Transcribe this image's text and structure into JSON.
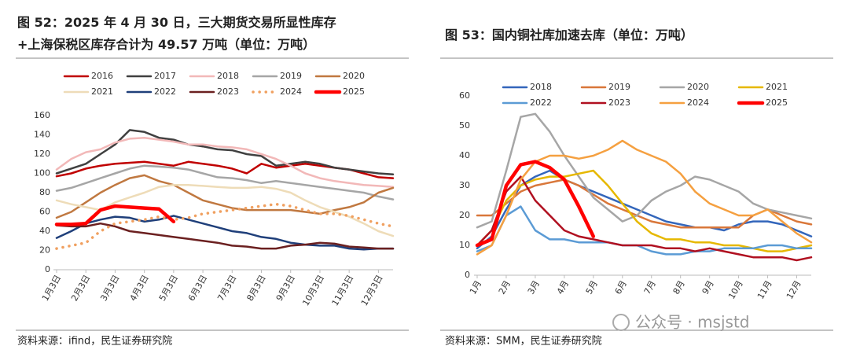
{
  "chart_data": [
    {
      "type": "line",
      "title": [
        "图 52：2025 年 4 月 30 日，三大期货交易所显性库存",
        "+上海保税区库存合计为 49.57 万吨（单位：万吨）"
      ],
      "source": "资料来源：ifind，民生证券研究院",
      "categories": [
        "1月3日",
        null,
        "2月3日",
        null,
        "3月3日",
        null,
        "4月3日",
        null,
        "5月3日",
        null,
        "6月3日",
        null,
        "7月3日",
        null,
        "8月3日",
        null,
        "9月3日",
        null,
        "10月3日",
        null,
        "11月3日",
        null,
        "12月3日",
        null
      ],
      "ylim": [
        0,
        160
      ],
      "yticks": [
        0,
        20,
        40,
        60,
        80,
        100,
        120,
        140,
        160
      ],
      "grid": false,
      "series": [
        {
          "name": "2016",
          "color": "#c00000",
          "values": [
            97,
            100,
            105,
            108,
            110,
            111,
            112,
            110,
            108,
            112,
            110,
            108,
            105,
            100,
            110,
            106,
            108,
            110,
            108,
            106,
            104,
            100,
            96,
            95
          ]
        },
        {
          "name": "2017",
          "color": "#404040",
          "values": [
            100,
            105,
            110,
            120,
            130,
            145,
            143,
            137,
            135,
            130,
            128,
            125,
            124,
            120,
            118,
            108,
            110,
            112,
            110,
            106,
            104,
            102,
            100,
            99
          ]
        },
        {
          "name": "2018",
          "color": "#f2b8b8",
          "values": [
            104,
            115,
            122,
            125,
            132,
            136,
            137,
            135,
            133,
            130,
            130,
            128,
            127,
            125,
            120,
            115,
            108,
            100,
            95,
            92,
            90,
            88,
            87,
            86
          ]
        },
        {
          "name": "2019",
          "color": "#a6a6a6",
          "values": [
            82,
            85,
            90,
            95,
            100,
            105,
            108,
            107,
            106,
            104,
            100,
            96,
            95,
            93,
            90,
            92,
            90,
            88,
            86,
            84,
            82,
            80,
            76,
            73
          ]
        },
        {
          "name": "2020",
          "color": "#c07840",
          "values": [
            54,
            60,
            70,
            80,
            88,
            95,
            98,
            92,
            88,
            80,
            72,
            68,
            64,
            62,
            62,
            62,
            62,
            60,
            58,
            62,
            65,
            70,
            80,
            85
          ]
        },
        {
          "name": "2021",
          "color": "#eedcb8",
          "values": [
            72,
            68,
            65,
            62,
            70,
            75,
            80,
            86,
            88,
            88,
            87,
            86,
            85,
            85,
            86,
            84,
            80,
            72,
            65,
            60,
            55,
            48,
            40,
            35
          ]
        },
        {
          "name": "2022",
          "color": "#1f3f7a",
          "values": [
            33,
            40,
            48,
            52,
            55,
            54,
            50,
            52,
            56,
            52,
            48,
            44,
            40,
            38,
            34,
            32,
            28,
            26,
            25,
            25,
            22,
            21,
            22,
            22
          ]
        },
        {
          "name": "2023",
          "color": "#6b2020",
          "values": [
            46,
            45,
            45,
            48,
            45,
            40,
            38,
            36,
            34,
            32,
            30,
            28,
            25,
            24,
            22,
            22,
            25,
            26,
            28,
            27,
            24,
            23,
            22,
            22
          ]
        },
        {
          "name": "2024",
          "color": "#f0a060",
          "dashed": true,
          "values": [
            22,
            25,
            28,
            40,
            48,
            50,
            52,
            55,
            52,
            54,
            58,
            60,
            62,
            64,
            66,
            68,
            66,
            62,
            58,
            58,
            56,
            52,
            48,
            45
          ]
        },
        {
          "name": "2025",
          "color": "#ff0000",
          "bold": true,
          "values": [
            47,
            47,
            48,
            62,
            66,
            65,
            64,
            63,
            50,
            null,
            null,
            null,
            null,
            null,
            null,
            null,
            null,
            null,
            null,
            null,
            null,
            null,
            null,
            null
          ]
        }
      ]
    },
    {
      "type": "line",
      "title": [
        "图 53：国内铜社库加速去库（单位：万吨）"
      ],
      "source": "资料来源：SMM，民生证券研究院",
      "categories": [
        "1月",
        null,
        "2月",
        null,
        "3月",
        null,
        "4月",
        null,
        "5月",
        null,
        "6月",
        null,
        "7月",
        null,
        "8月",
        null,
        "9月",
        null,
        "10月",
        null,
        "11月",
        null,
        "12月",
        null
      ],
      "ylim": [
        0,
        60
      ],
      "yticks": [
        0,
        10,
        20,
        30,
        40,
        50,
        60
      ],
      "grid": false,
      "series": [
        {
          "name": "2018",
          "color": "#3366bb",
          "values": [
            9,
            13,
            22,
            30,
            33,
            35,
            32,
            30,
            28,
            26,
            24,
            22,
            20,
            18,
            17,
            16,
            16,
            15,
            17,
            18,
            18,
            17,
            15,
            13
          ]
        },
        {
          "name": "2019",
          "color": "#d9773a",
          "values": [
            20,
            20,
            24,
            28,
            30,
            31,
            32,
            30,
            27,
            24,
            22,
            20,
            18,
            17,
            16,
            16,
            16,
            16,
            16,
            20,
            22,
            20,
            18,
            17
          ]
        },
        {
          "name": "2020",
          "color": "#a6a6a6",
          "values": [
            16,
            18,
            35,
            53,
            54,
            48,
            40,
            33,
            26,
            22,
            18,
            20,
            25,
            28,
            30,
            33,
            32,
            30,
            28,
            24,
            22,
            21,
            20,
            19
          ]
        },
        {
          "name": "2021",
          "color": "#e6b800",
          "values": [
            10,
            15,
            25,
            30,
            32,
            33,
            33,
            34,
            35,
            30,
            24,
            18,
            14,
            12,
            12,
            11,
            11,
            10,
            10,
            9,
            8,
            8,
            9,
            10
          ]
        },
        {
          "name": "2022",
          "color": "#5b9bd5",
          "values": [
            8,
            10,
            20,
            23,
            15,
            12,
            12,
            11,
            11,
            11,
            10,
            10,
            8,
            7,
            7,
            8,
            8,
            9,
            9,
            9,
            10,
            10,
            9,
            9
          ]
        },
        {
          "name": "2023",
          "color": "#b01020",
          "values": [
            10,
            15,
            28,
            33,
            25,
            20,
            15,
            13,
            12,
            11,
            10,
            10,
            10,
            9,
            9,
            8,
            9,
            8,
            7,
            6,
            6,
            6,
            5,
            6
          ]
        },
        {
          "name": "2024",
          "color": "#f5a040",
          "values": [
            7,
            10,
            20,
            32,
            38,
            40,
            40,
            39,
            40,
            42,
            45,
            42,
            40,
            38,
            34,
            28,
            24,
            22,
            20,
            20,
            22,
            18,
            14,
            11
          ]
        },
        {
          "name": "2025",
          "color": "#ff0000",
          "bold": true,
          "values": [
            10,
            12,
            30,
            37,
            38,
            36,
            32,
            23,
            13,
            null,
            null,
            null,
            null,
            null,
            null,
            null,
            null,
            null,
            null,
            null,
            null,
            null,
            null,
            null
          ]
        }
      ]
    }
  ],
  "watermark": "公众号 · msjstd"
}
